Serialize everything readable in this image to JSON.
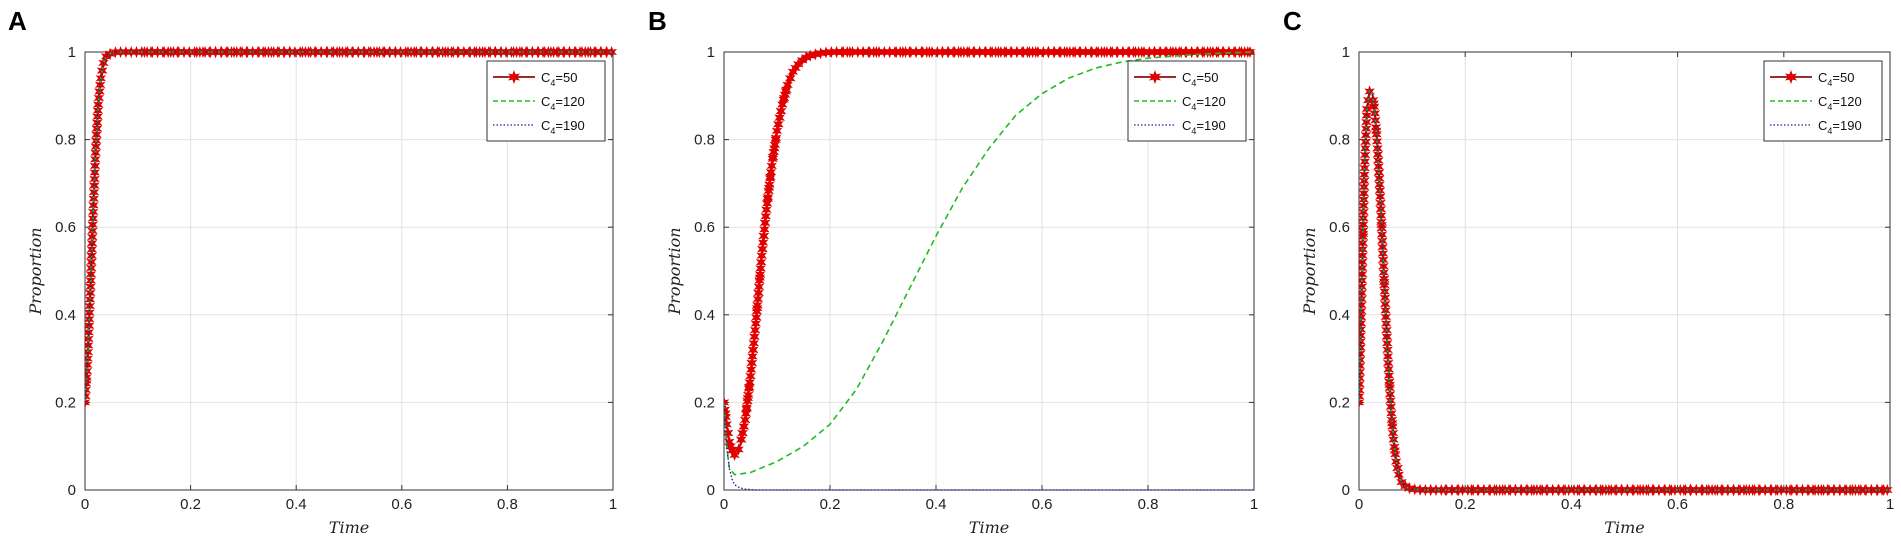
{
  "chart_data": [
    {
      "panel": "A",
      "type": "line",
      "xlabel": "Time",
      "ylabel": "Proportion",
      "xlim": [
        0,
        1
      ],
      "ylim": [
        0,
        1
      ],
      "xticks": [
        "0",
        "0.2",
        "0.4",
        "0.6",
        "0.8",
        "1"
      ],
      "yticks": [
        "0",
        "0.2",
        "0.4",
        "0.6",
        "0.8",
        "1"
      ],
      "grid": true,
      "legend": "top-right",
      "series": [
        {
          "name": "C4=50",
          "color": "#e00000",
          "style": "solid-star-markers",
          "x": [
            0,
            0.005,
            0.01,
            0.015,
            0.02,
            0.025,
            0.03,
            0.035,
            0.04,
            0.05,
            0.06,
            0.08,
            0.1,
            0.2,
            0.4,
            0.6,
            0.8,
            1.0
          ],
          "y": [
            0.2,
            0.3,
            0.45,
            0.62,
            0.77,
            0.88,
            0.94,
            0.975,
            0.99,
            0.998,
            1.0,
            1.0,
            1.0,
            1.0,
            1.0,
            1.0,
            1.0,
            1.0
          ]
        },
        {
          "name": "C4=120",
          "color": "#22bb22",
          "style": "dashed",
          "x": [
            0,
            0.005,
            0.01,
            0.015,
            0.02,
            0.025,
            0.03,
            0.035,
            0.04,
            0.05,
            0.06,
            0.08,
            0.1,
            0.2,
            0.4,
            0.6,
            0.8,
            1.0
          ],
          "y": [
            0.2,
            0.3,
            0.45,
            0.62,
            0.77,
            0.88,
            0.94,
            0.975,
            0.99,
            0.998,
            1.0,
            1.0,
            1.0,
            1.0,
            1.0,
            1.0,
            1.0,
            1.0
          ]
        },
        {
          "name": "C4=190",
          "color": "#1a1aa0",
          "style": "dotted",
          "x": [
            0,
            0.005,
            0.01,
            0.015,
            0.02,
            0.025,
            0.03,
            0.035,
            0.04,
            0.05,
            0.06,
            0.08,
            0.1,
            0.2,
            0.4,
            0.6,
            0.8,
            1.0
          ],
          "y": [
            0.2,
            0.3,
            0.45,
            0.62,
            0.77,
            0.88,
            0.94,
            0.975,
            0.99,
            0.998,
            1.0,
            1.0,
            1.0,
            1.0,
            1.0,
            1.0,
            1.0,
            1.0
          ]
        }
      ]
    },
    {
      "panel": "B",
      "type": "line",
      "xlabel": "Time",
      "ylabel": "Proportion",
      "xlim": [
        0,
        1
      ],
      "ylim": [
        0,
        1
      ],
      "xticks": [
        "0",
        "0.2",
        "0.4",
        "0.6",
        "0.8",
        "1"
      ],
      "yticks": [
        "0",
        "0.2",
        "0.4",
        "0.6",
        "0.8",
        "1"
      ],
      "grid": true,
      "legend": "top-right",
      "series": [
        {
          "name": "C4=50",
          "color": "#e00000",
          "style": "solid-star-markers",
          "x": [
            0,
            0.005,
            0.01,
            0.015,
            0.02,
            0.025,
            0.03,
            0.04,
            0.05,
            0.06,
            0.07,
            0.08,
            0.09,
            0.1,
            0.11,
            0.12,
            0.13,
            0.14,
            0.15,
            0.16,
            0.18,
            0.2,
            0.25,
            0.3,
            0.4,
            0.6,
            0.8,
            1.0
          ],
          "y": [
            0.2,
            0.15,
            0.11,
            0.09,
            0.08,
            0.085,
            0.1,
            0.16,
            0.26,
            0.38,
            0.52,
            0.64,
            0.74,
            0.82,
            0.88,
            0.925,
            0.955,
            0.972,
            0.984,
            0.991,
            0.997,
            1.0,
            1.0,
            1.0,
            1.0,
            1.0,
            1.0,
            1.0
          ]
        },
        {
          "name": "C4=120",
          "color": "#22bb22",
          "style": "dashed",
          "x": [
            0,
            0.005,
            0.01,
            0.02,
            0.05,
            0.1,
            0.15,
            0.2,
            0.25,
            0.3,
            0.35,
            0.4,
            0.45,
            0.5,
            0.55,
            0.6,
            0.65,
            0.7,
            0.75,
            0.8,
            0.85,
            0.9,
            0.95,
            1.0
          ],
          "y": [
            0.2,
            0.1,
            0.05,
            0.035,
            0.04,
            0.065,
            0.1,
            0.15,
            0.23,
            0.34,
            0.46,
            0.58,
            0.69,
            0.78,
            0.855,
            0.905,
            0.94,
            0.963,
            0.977,
            0.986,
            0.991,
            0.995,
            0.998,
            1.0
          ]
        },
        {
          "name": "C4=190",
          "color": "#1a1aa0",
          "style": "dotted",
          "x": [
            0,
            0.005,
            0.01,
            0.015,
            0.02,
            0.03,
            0.04,
            0.06,
            0.1,
            0.2,
            0.4,
            0.6,
            0.8,
            1.0
          ],
          "y": [
            0.2,
            0.1,
            0.05,
            0.025,
            0.012,
            0.005,
            0.002,
            0.0,
            0.0,
            0.0,
            0.0,
            0.0,
            0.0,
            0.0
          ]
        }
      ]
    },
    {
      "panel": "C",
      "type": "line",
      "xlabel": "Time",
      "ylabel": "Proportion",
      "xlim": [
        0,
        1
      ],
      "ylim": [
        0,
        1
      ],
      "xticks": [
        "0",
        "0.2",
        "0.4",
        "0.6",
        "0.8",
        "1"
      ],
      "yticks": [
        "0",
        "0.2",
        "0.4",
        "0.6",
        "0.8",
        "1"
      ],
      "grid": true,
      "legend": "top-right",
      "series": [
        {
          "name": "C4=50",
          "color": "#e00000",
          "style": "solid-star-markers",
          "x": [
            0,
            0.005,
            0.01,
            0.015,
            0.02,
            0.025,
            0.03,
            0.035,
            0.04,
            0.045,
            0.05,
            0.055,
            0.06,
            0.065,
            0.07,
            0.075,
            0.08,
            0.09,
            0.1,
            0.12,
            0.15,
            0.2,
            0.4,
            0.6,
            0.8,
            1.0
          ],
          "y": [
            0.2,
            0.45,
            0.72,
            0.87,
            0.91,
            0.905,
            0.86,
            0.78,
            0.67,
            0.54,
            0.41,
            0.29,
            0.19,
            0.115,
            0.065,
            0.035,
            0.018,
            0.006,
            0.002,
            0.0,
            0.0,
            0.0,
            0.0,
            0.0,
            0.0,
            0.0
          ]
        },
        {
          "name": "C4=120",
          "color": "#22bb22",
          "style": "dashed",
          "x": [
            0,
            0.005,
            0.01,
            0.015,
            0.02,
            0.025,
            0.03,
            0.035,
            0.04,
            0.045,
            0.05,
            0.055,
            0.06,
            0.065,
            0.07,
            0.075,
            0.08,
            0.09,
            0.1,
            0.12,
            0.15,
            0.2,
            0.4,
            0.6,
            0.8,
            1.0
          ],
          "y": [
            0.2,
            0.45,
            0.72,
            0.87,
            0.91,
            0.905,
            0.86,
            0.78,
            0.67,
            0.54,
            0.41,
            0.29,
            0.19,
            0.115,
            0.065,
            0.035,
            0.018,
            0.006,
            0.002,
            0.0,
            0.0,
            0.0,
            0.0,
            0.0,
            0.0,
            0.0
          ]
        },
        {
          "name": "C4=190",
          "color": "#1a1aa0",
          "style": "dotted",
          "x": [
            0,
            0.005,
            0.01,
            0.015,
            0.02,
            0.025,
            0.03,
            0.035,
            0.04,
            0.045,
            0.05,
            0.055,
            0.06,
            0.065,
            0.07,
            0.075,
            0.08,
            0.09,
            0.1,
            0.12,
            0.15,
            0.2,
            0.4,
            0.6,
            0.8,
            1.0
          ],
          "y": [
            0.2,
            0.45,
            0.72,
            0.87,
            0.91,
            0.905,
            0.86,
            0.78,
            0.67,
            0.54,
            0.41,
            0.29,
            0.19,
            0.115,
            0.065,
            0.035,
            0.018,
            0.006,
            0.002,
            0.0,
            0.0,
            0.0,
            0.0,
            0.0,
            0.0,
            0.0
          ]
        }
      ]
    }
  ]
}
